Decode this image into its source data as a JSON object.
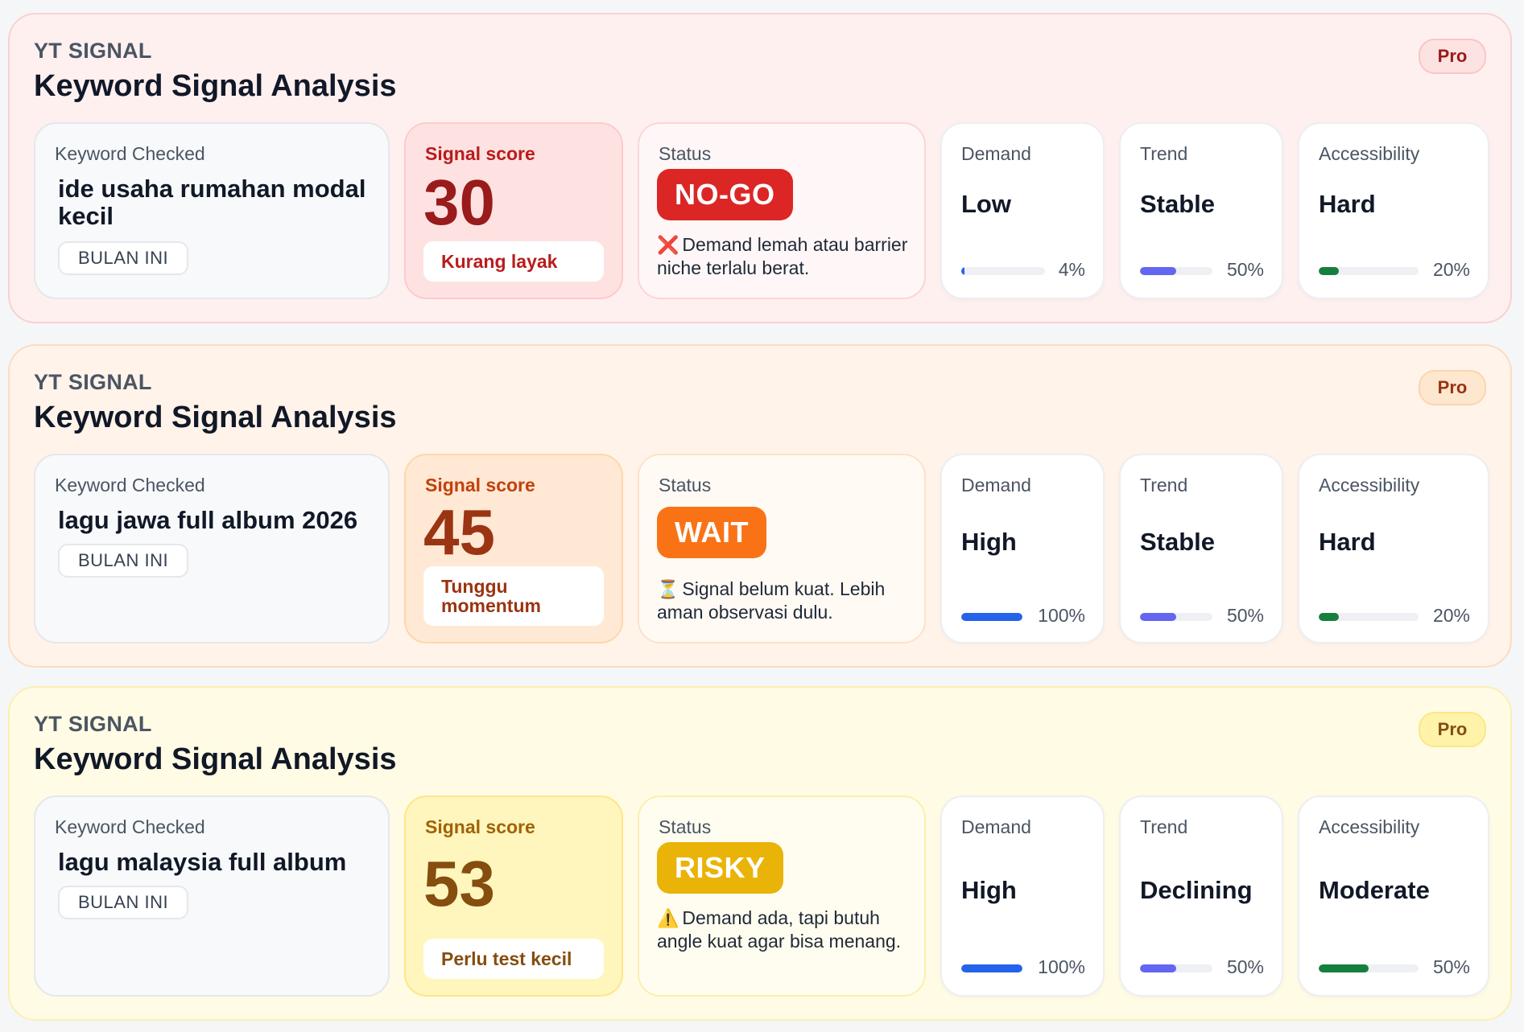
{
  "panels": [
    {
      "eyebrow": "YT SIGNAL",
      "title": "Keyword Signal Analysis",
      "badge": "Pro",
      "keyword": {
        "label": "Keyword Checked",
        "value": "ide usaha rumahan modal kecil",
        "period": "BULAN INI"
      },
      "score": {
        "label": "Signal score",
        "value": "30",
        "verdict": "Kurang layak"
      },
      "status": {
        "label": "Status",
        "badge": "NO-GO",
        "icon": "❌",
        "message": "Demand lemah atau barrier niche terlalu berat."
      },
      "metrics": [
        {
          "label": "Demand",
          "value": "Low",
          "percent_text": "4%",
          "percent": 4,
          "color": "blue"
        },
        {
          "label": "Trend",
          "value": "Stable",
          "percent_text": "50%",
          "percent": 50,
          "color": "purple"
        },
        {
          "label": "Accessibility",
          "value": "Hard",
          "percent_text": "20%",
          "percent": 20,
          "color": "green"
        }
      ]
    },
    {
      "eyebrow": "YT SIGNAL",
      "title": "Keyword Signal Analysis",
      "badge": "Pro",
      "keyword": {
        "label": "Keyword Checked",
        "value": "lagu jawa full album 2026",
        "period": "BULAN INI"
      },
      "score": {
        "label": "Signal score",
        "value": "45",
        "verdict": "Tunggu momentum"
      },
      "status": {
        "label": "Status",
        "badge": "WAIT",
        "icon": "⏳",
        "message": "Signal belum kuat. Lebih aman observasi dulu."
      },
      "metrics": [
        {
          "label": "Demand",
          "value": "High",
          "percent_text": "100%",
          "percent": 100,
          "color": "blue"
        },
        {
          "label": "Trend",
          "value": "Stable",
          "percent_text": "50%",
          "percent": 50,
          "color": "purple"
        },
        {
          "label": "Accessibility",
          "value": "Hard",
          "percent_text": "20%",
          "percent": 20,
          "color": "green"
        }
      ]
    },
    {
      "eyebrow": "YT SIGNAL",
      "title": "Keyword Signal Analysis",
      "badge": "Pro",
      "keyword": {
        "label": "Keyword Checked",
        "value": "lagu malaysia full album",
        "period": "BULAN INI"
      },
      "score": {
        "label": "Signal score",
        "value": "53",
        "verdict": "Perlu test kecil"
      },
      "status": {
        "label": "Status",
        "badge": "RISKY",
        "icon": "⚠️",
        "message": "Demand ada, tapi butuh angle kuat agar bisa menang."
      },
      "metrics": [
        {
          "label": "Demand",
          "value": "High",
          "percent_text": "100%",
          "percent": 100,
          "color": "blue"
        },
        {
          "label": "Trend",
          "value": "Declining",
          "percent_text": "50%",
          "percent": 50,
          "color": "purple"
        },
        {
          "label": "Accessibility",
          "value": "Moderate",
          "percent_text": "50%",
          "percent": 50,
          "color": "green"
        }
      ]
    }
  ]
}
